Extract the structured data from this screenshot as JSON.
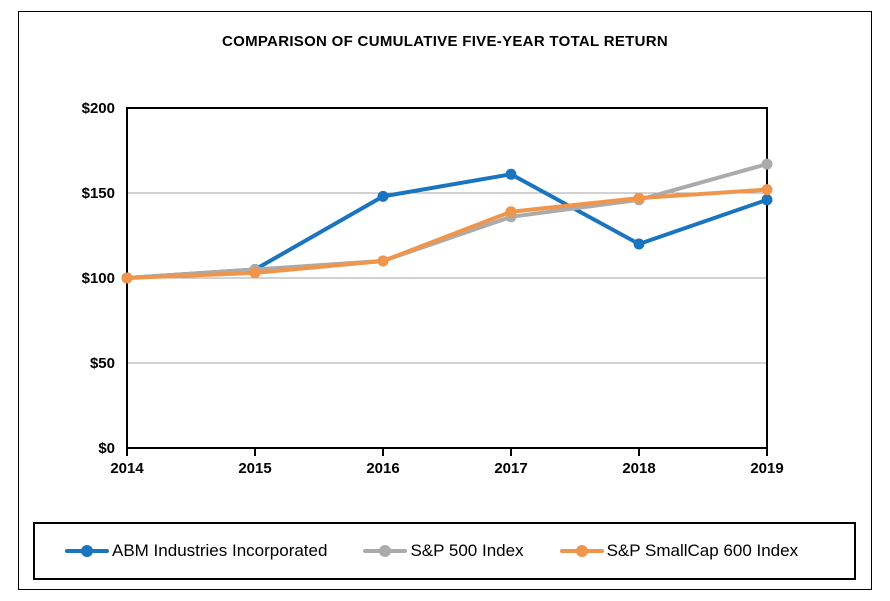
{
  "chart_data": {
    "type": "line",
    "title": "COMPARISON OF CUMULATIVE FIVE-YEAR TOTAL RETURN",
    "categories": [
      "2014",
      "2015",
      "2016",
      "2017",
      "2018",
      "2019"
    ],
    "series": [
      {
        "name": "ABM Industries Incorporated",
        "color": "#1B74BE",
        "values": [
          100,
          105,
          148,
          161,
          120,
          146
        ]
      },
      {
        "name": "S&P 500 Index",
        "color": "#ABABAB",
        "values": [
          100,
          105,
          110,
          136,
          146,
          167
        ]
      },
      {
        "name": "S&P SmallCap 600 Index",
        "color": "#F0954C",
        "values": [
          100,
          103,
          110,
          139,
          147,
          152
        ]
      }
    ],
    "xlabel": "",
    "ylabel": "",
    "ylim": [
      0,
      200
    ],
    "y_ticks": [
      0,
      50,
      100,
      150,
      200
    ],
    "y_tick_labels": [
      "$0",
      "$50",
      "$100",
      "$150",
      "$200"
    ],
    "grid": true,
    "gridline_color": "#A6A6A6",
    "axis_color": "#000000",
    "legend_position": "bottom"
  }
}
